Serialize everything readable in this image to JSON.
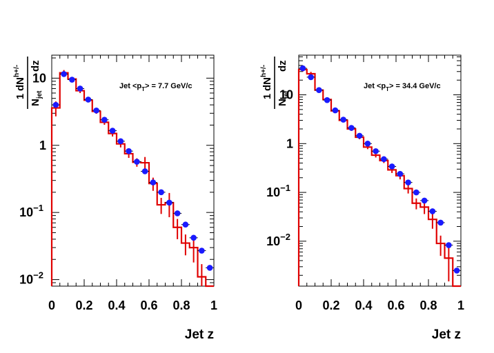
{
  "chart_data": [
    {
      "type": "scatter",
      "annotation": "Jet <pT> = 7.7 GeV/c",
      "xlabel": "Jet z",
      "ylabel": "1/N_jet dN^{h+/-}/dz",
      "xlim": [
        0,
        1
      ],
      "ylim": [
        0.008,
        22
      ],
      "yscale": "log",
      "x_ticks": [
        "0",
        "0.2",
        "0.4",
        "0.6",
        "0.8",
        "1"
      ],
      "y_ticks": [
        {
          "value": 0.01,
          "label": "10",
          "exp": "−2"
        },
        {
          "value": 0.1,
          "label": "10",
          "exp": "−1"
        },
        {
          "value": 1,
          "label": "1",
          "exp": ""
        },
        {
          "value": 10,
          "label": "10",
          "exp": ""
        }
      ],
      "series": [
        {
          "style": "points",
          "color": "#1a1aff",
          "x": [
            0.025,
            0.075,
            0.125,
            0.175,
            0.225,
            0.275,
            0.325,
            0.375,
            0.425,
            0.475,
            0.525,
            0.575,
            0.625,
            0.675,
            0.725,
            0.775,
            0.825,
            0.875,
            0.925,
            0.975
          ],
          "y": [
            4.0,
            11.5,
            9.5,
            7.0,
            4.8,
            3.3,
            2.4,
            1.65,
            1.15,
            0.82,
            0.57,
            0.41,
            0.28,
            0.2,
            0.14,
            0.097,
            0.066,
            0.042,
            0.027,
            0.015
          ]
        },
        {
          "style": "step",
          "color": "#e00000",
          "edges": [
            0,
            0.05,
            0.1,
            0.15,
            0.2,
            0.25,
            0.3,
            0.35,
            0.4,
            0.45,
            0.5,
            0.55,
            0.6,
            0.65,
            0.7,
            0.75,
            0.8,
            0.85,
            0.9,
            0.95,
            1.0
          ],
          "y": [
            3.6,
            12.0,
            9.7,
            6.5,
            4.7,
            3.2,
            2.2,
            1.5,
            1.05,
            0.75,
            0.56,
            0.55,
            0.27,
            0.13,
            0.14,
            0.06,
            0.035,
            0.03,
            0.011,
            0.008
          ],
          "err": [
            0.9,
            1.2,
            0.7,
            0.5,
            0.35,
            0.25,
            0.18,
            0.15,
            0.12,
            0.1,
            0.08,
            0.12,
            0.06,
            0.035,
            0.055,
            0.02,
            0.012,
            0.012,
            0.006,
            0.0
          ]
        }
      ]
    },
    {
      "type": "scatter",
      "annotation": "Jet <pT> = 34.4 GeV/c",
      "xlabel": "Jet z",
      "ylabel": "1/N_jet dN^{h+/-}/dz",
      "xlim": [
        0,
        1
      ],
      "ylim": [
        0.0012,
        65
      ],
      "yscale": "log",
      "x_ticks": [
        "0",
        "0.2",
        "0.4",
        "0.6",
        "0.8",
        "1"
      ],
      "y_ticks": [
        {
          "value": 0.01,
          "label": "10",
          "exp": "−2"
        },
        {
          "value": 0.1,
          "label": "10",
          "exp": "−1"
        },
        {
          "value": 1,
          "label": "1",
          "exp": ""
        },
        {
          "value": 10,
          "label": "10",
          "exp": ""
        }
      ],
      "series": [
        {
          "style": "points",
          "color": "#1a1aff",
          "x": [
            0.025,
            0.075,
            0.125,
            0.175,
            0.225,
            0.275,
            0.325,
            0.375,
            0.425,
            0.475,
            0.525,
            0.575,
            0.625,
            0.675,
            0.725,
            0.775,
            0.825,
            0.875,
            0.925,
            0.975
          ],
          "y": [
            35.0,
            23.0,
            12.5,
            7.8,
            4.8,
            3.1,
            2.1,
            1.45,
            1.0,
            0.7,
            0.48,
            0.34,
            0.24,
            0.16,
            0.1,
            0.068,
            0.041,
            0.024,
            0.0083,
            0.0025
          ]
        },
        {
          "style": "step",
          "color": "#e00000",
          "edges": [
            0,
            0.05,
            0.1,
            0.15,
            0.2,
            0.25,
            0.3,
            0.35,
            0.4,
            0.45,
            0.5,
            0.55,
            0.6,
            0.65,
            0.7,
            0.75,
            0.8,
            0.85,
            0.9,
            0.95,
            1.0
          ],
          "y": [
            33.0,
            27.0,
            12.5,
            8.0,
            4.7,
            3.0,
            2.0,
            1.35,
            0.85,
            0.58,
            0.45,
            0.29,
            0.22,
            0.12,
            0.06,
            0.05,
            0.028,
            0.009,
            0.0045,
            0.0012
          ],
          "err": [
            3.0,
            2.5,
            1.2,
            0.7,
            0.4,
            0.25,
            0.18,
            0.12,
            0.08,
            0.06,
            0.05,
            0.04,
            0.035,
            0.025,
            0.015,
            0.014,
            0.01,
            0.004,
            0.003,
            0.0
          ]
        }
      ]
    }
  ]
}
